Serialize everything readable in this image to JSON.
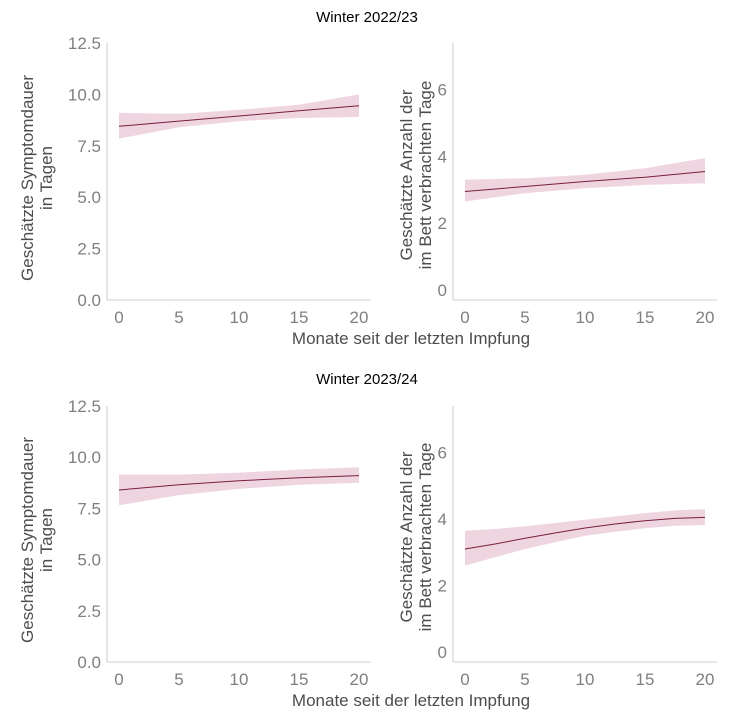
{
  "colors": {
    "line": "#7a1f3d",
    "band": "#e6bfcf",
    "axis": "#cccccc",
    "tick_text": "#7f7f7f",
    "axis_title": "#4d4d4d",
    "title_text": "#000000"
  },
  "xlabel": "Monate seit der letzten Impfung",
  "chart_data": [
    {
      "type": "line",
      "title": "Winter 2022/23",
      "panel": "left",
      "ylabel": [
        "Geschätzte Symptomdauer",
        "in Tagen"
      ],
      "xlim": [
        -1,
        21
      ],
      "ylim": [
        0,
        12.5
      ],
      "xticks": [
        0,
        5,
        10,
        15,
        20
      ],
      "yticks": [
        "0.0",
        "2.5",
        "5.0",
        "7.5",
        "10.0",
        "12.5"
      ],
      "x": [
        0,
        5,
        10,
        15,
        20
      ],
      "y": [
        8.45,
        8.7,
        8.95,
        9.2,
        9.45
      ],
      "lower": [
        7.85,
        8.4,
        8.7,
        8.85,
        8.9
      ],
      "upper": [
        9.1,
        9.05,
        9.25,
        9.5,
        10.0
      ]
    },
    {
      "type": "line",
      "title": "Winter 2022/23",
      "panel": "right",
      "ylabel": [
        "Geschätzte Anzahl der",
        "im Bett verbrachten Tage"
      ],
      "xlim": [
        -1,
        21
      ],
      "ylim": [
        -0.3,
        7.4
      ],
      "xticks": [
        0,
        5,
        10,
        15,
        20
      ],
      "yticks": [
        "0",
        "2",
        "4",
        "6"
      ],
      "x": [
        0,
        5,
        10,
        15,
        20
      ],
      "y": [
        2.95,
        3.1,
        3.25,
        3.38,
        3.55
      ],
      "lower": [
        2.65,
        2.9,
        3.05,
        3.15,
        3.2
      ],
      "upper": [
        3.3,
        3.35,
        3.45,
        3.65,
        3.95
      ]
    },
    {
      "type": "line",
      "title": "Winter 2023/24",
      "panel": "left",
      "ylabel": [
        "Geschätzte Symptomdauer",
        "in Tagen"
      ],
      "xlim": [
        -1,
        21
      ],
      "ylim": [
        0,
        12.5
      ],
      "xticks": [
        0,
        5,
        10,
        15,
        20
      ],
      "yticks": [
        "0.0",
        "2.5",
        "5.0",
        "7.5",
        "10.0",
        "12.5"
      ],
      "x": [
        0,
        5,
        10,
        15,
        20
      ],
      "y": [
        8.4,
        8.65,
        8.85,
        9.0,
        9.1
      ],
      "lower": [
        7.65,
        8.15,
        8.45,
        8.65,
        8.75
      ],
      "upper": [
        9.15,
        9.15,
        9.25,
        9.4,
        9.5
      ]
    },
    {
      "type": "line",
      "title": "Winter 2023/24",
      "panel": "right",
      "ylabel": [
        "Geschätzte Anzahl der",
        "im Bett verbrachten Tage"
      ],
      "xlim": [
        -1,
        21
      ],
      "ylim": [
        -0.3,
        7.4
      ],
      "xticks": [
        0,
        5,
        10,
        15,
        20
      ],
      "yticks": [
        "0",
        "2",
        "4",
        "6"
      ],
      "x": [
        0,
        2.5,
        5,
        7.5,
        10,
        12.5,
        15,
        17.5,
        20
      ],
      "y": [
        3.1,
        3.25,
        3.42,
        3.58,
        3.73,
        3.85,
        3.95,
        4.02,
        4.05
      ],
      "lower": [
        2.6,
        2.85,
        3.1,
        3.3,
        3.5,
        3.62,
        3.72,
        3.8,
        3.82
      ],
      "upper": [
        3.65,
        3.7,
        3.78,
        3.88,
        3.98,
        4.08,
        4.18,
        4.26,
        4.3
      ]
    }
  ]
}
